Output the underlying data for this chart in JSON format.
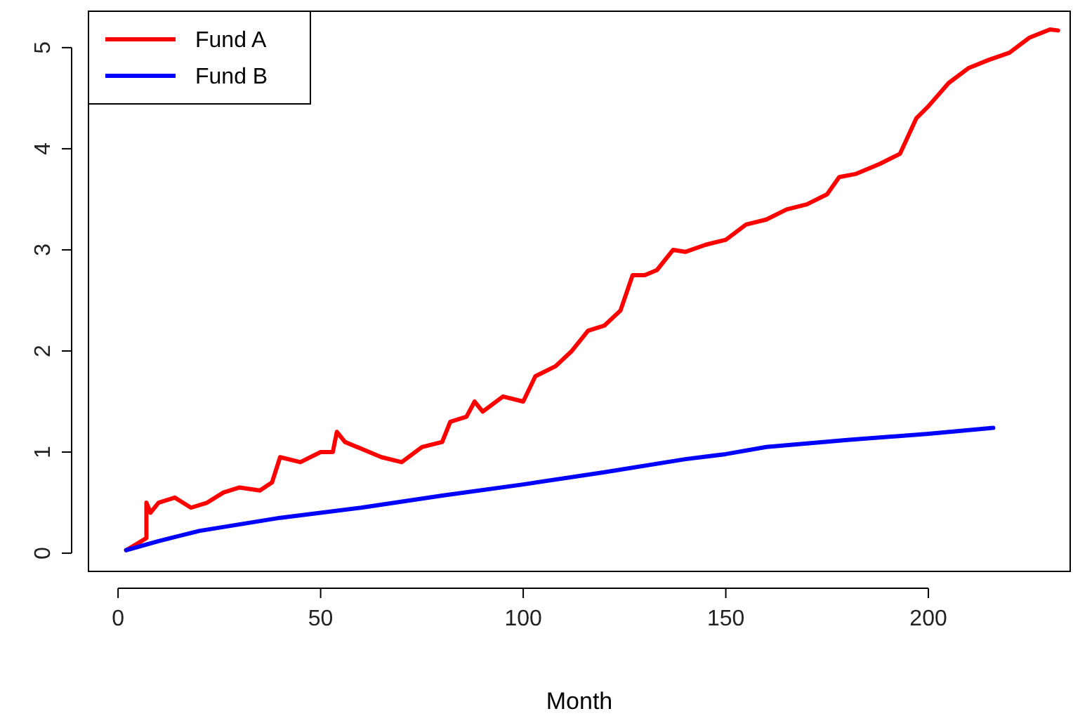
{
  "chart_data": {
    "type": "line",
    "xlabel": "Month",
    "xlim": [
      -7.3,
      235
    ],
    "ylim": [
      -0.18,
      5.36
    ],
    "xticks": [
      0,
      50,
      100,
      150,
      200
    ],
    "yticks": [
      0,
      1,
      2,
      3,
      4,
      5
    ],
    "grid": false,
    "legend": "top left",
    "line_style": "solid",
    "marker": "none",
    "series": [
      {
        "name": "Fund A",
        "color": "#ff0000",
        "x": [
          2,
          5,
          7,
          7,
          8,
          10,
          14,
          18,
          22,
          26,
          30,
          35,
          38,
          40,
          45,
          50,
          53,
          54,
          56,
          62,
          65,
          70,
          75,
          80,
          82,
          86,
          88,
          90,
          95,
          100,
          103,
          108,
          112,
          116,
          120,
          124,
          127,
          130,
          133,
          137,
          140,
          145,
          150,
          155,
          160,
          165,
          170,
          175,
          178,
          182,
          188,
          193,
          197,
          200,
          205,
          210,
          215,
          220,
          225,
          230,
          232
        ],
        "values": [
          0.03,
          0.1,
          0.15,
          0.5,
          0.4,
          0.5,
          0.55,
          0.45,
          0.5,
          0.6,
          0.65,
          0.62,
          0.7,
          0.95,
          0.9,
          1.0,
          1.0,
          1.2,
          1.1,
          1.0,
          0.95,
          0.9,
          1.05,
          1.1,
          1.3,
          1.35,
          1.5,
          1.4,
          1.55,
          1.5,
          1.75,
          1.85,
          2.0,
          2.2,
          2.25,
          2.4,
          2.75,
          2.75,
          2.8,
          3.0,
          2.98,
          3.05,
          3.1,
          3.25,
          3.3,
          3.4,
          3.45,
          3.55,
          3.72,
          3.75,
          3.85,
          3.95,
          4.3,
          4.42,
          4.65,
          4.8,
          4.88,
          4.95,
          5.1,
          5.18,
          5.17
        ]
      },
      {
        "name": "Fund B",
        "color": "#0000ff",
        "x": [
          2,
          10,
          20,
          40,
          60,
          80,
          100,
          120,
          140,
          150,
          160,
          180,
          200,
          216
        ],
        "values": [
          0.03,
          0.12,
          0.22,
          0.35,
          0.45,
          0.57,
          0.68,
          0.8,
          0.93,
          0.98,
          1.05,
          1.12,
          1.18,
          1.24
        ]
      }
    ]
  }
}
